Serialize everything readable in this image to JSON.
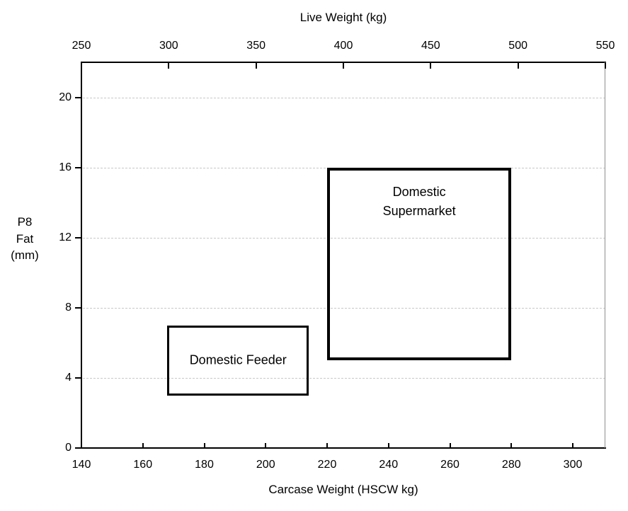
{
  "chart_data": {
    "type": "region-plot",
    "top_axis": {
      "label": "Live Weight (kg)",
      "ticks": [
        250,
        300,
        350,
        400,
        450,
        500,
        550
      ],
      "range": [
        250,
        550
      ]
    },
    "bottom_axis": {
      "label": "Carcase Weight (HSCW kg)",
      "ticks": [
        140,
        160,
        180,
        200,
        220,
        240,
        260,
        280,
        300
      ],
      "range": [
        140,
        310.6
      ]
    },
    "y_axis": {
      "label": "P8 Fat (mm)",
      "label_display": "P8\nFat\n(mm)",
      "ticks": [
        0,
        4,
        8,
        12,
        16,
        20
      ],
      "range": [
        0,
        22
      ],
      "gridlines": [
        4,
        8,
        12,
        16,
        20
      ]
    },
    "regions": [
      {
        "id": "domestic-feeder",
        "label": "Domestic Feeder",
        "label_lines": [
          "Domestic Feeder"
        ],
        "carcase_weight_kg": [
          168,
          214
        ],
        "p8_fat_mm": [
          3,
          7
        ],
        "label_placement": "center",
        "border_px": 3
      },
      {
        "id": "domestic-supermarket",
        "label": "Domestic Supermarket",
        "label_lines": [
          "Domestic",
          "Supermarket"
        ],
        "carcase_weight_kg": [
          220,
          280
        ],
        "p8_fat_mm": [
          5,
          16
        ],
        "label_placement": "top",
        "border_px": 4
      }
    ],
    "grid": true,
    "legend": "none",
    "colors": {
      "axis": "#000000",
      "grid": "#c8c8c8",
      "right_border": "#8e8e8e",
      "text": "#000000",
      "background": "#ffffff"
    }
  }
}
